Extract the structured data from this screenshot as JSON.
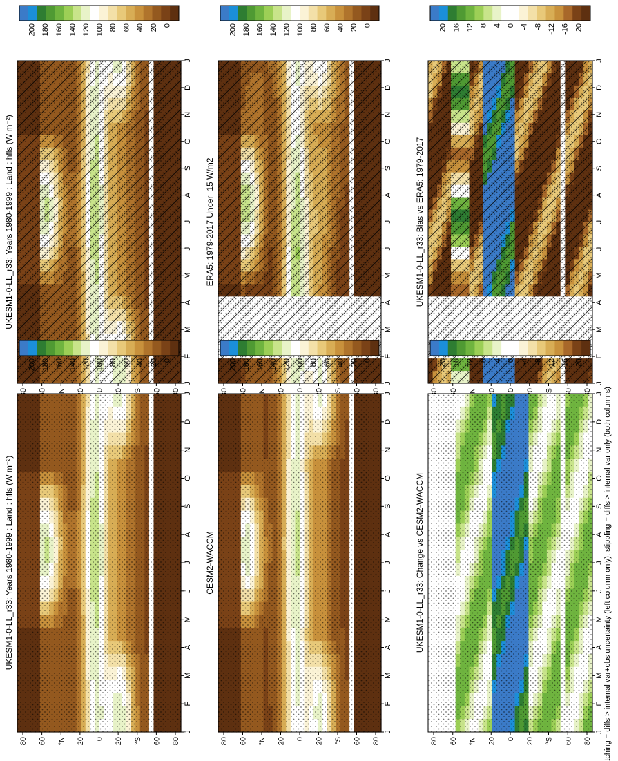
{
  "footnote": "hatching = diffs > internal var+obs uncertainty (left column only); stippling = diffs > internal var only (both columns)",
  "palettes": {
    "abs": [
      "#3b7bc8",
      "#1b8fd9",
      "#2e7d32",
      "#4f9a33",
      "#6fb43f",
      "#9ccf56",
      "#c8e48a",
      "#e8f3c8",
      "#ffffff",
      "#fbf3d6",
      "#f3e0a8",
      "#e8c979",
      "#d8ad55",
      "#c8913c",
      "#b0742c",
      "#94591f",
      "#7a4217",
      "#5e3010"
    ],
    "diff": [
      "#3b7bc8",
      "#1b8fd9",
      "#2e7d32",
      "#4f9a33",
      "#6fb43f",
      "#9ccf56",
      "#c8e48a",
      "#e8f3c8",
      "#ffffff",
      "#ffffff",
      "#fbf3d6",
      "#f3e0a8",
      "#e8c979",
      "#d8ad55",
      "#c8913c",
      "#a8682a",
      "#7a4217",
      "#5e3010"
    ]
  },
  "chart_data": [
    {
      "type": "heatmap",
      "title": "UKESM1-0-LL_r33: Years 1980-1999 : Land : hfls (W m⁻²)",
      "months": [
        "J",
        "F",
        "M",
        "A",
        "M",
        "J",
        "J",
        "A",
        "S",
        "O",
        "N",
        "D",
        "J"
      ],
      "lat_ticks": [
        "80",
        "60",
        "°N",
        "20",
        "0",
        "20",
        "°S",
        "60",
        "80"
      ],
      "colorbar_ticks": [
        "200",
        "180",
        "160",
        "140",
        "120",
        "100",
        "80",
        "60",
        "40",
        "20",
        "0"
      ],
      "palette": "abs",
      "field": "clim",
      "amp": 1.0,
      "hatch": true,
      "stipple": true
    },
    {
      "type": "heatmap",
      "title": "ERA5: 1979-2017 Uncer=15 W/m2",
      "months": [
        "J",
        "F",
        "M",
        "A",
        "M",
        "J",
        "J",
        "A",
        "S",
        "O",
        "N",
        "D",
        "J"
      ],
      "lat_ticks": [
        "80",
        "60",
        "°N",
        "20",
        "0",
        "20",
        "°S",
        "60",
        "80"
      ],
      "colorbar_ticks": [
        "200",
        "180",
        "160",
        "140",
        "120",
        "100",
        "80",
        "60",
        "40",
        "20",
        "0"
      ],
      "palette": "abs",
      "field": "obs",
      "amp": 1.0,
      "hatch": true,
      "stipple": true
    },
    {
      "type": "heatmap",
      "title": "UKESM1-0-LL_r33: Bias vs ERA5: 1979-2017",
      "months": [
        "J",
        "F",
        "M",
        "A",
        "M",
        "J",
        "J",
        "A",
        "S",
        "O",
        "N",
        "D",
        "J"
      ],
      "lat_ticks": [
        "80",
        "60",
        "°N",
        "20",
        "0",
        "20",
        "°S",
        "60",
        "80"
      ],
      "colorbar_ticks": [
        "20",
        "16",
        "12",
        "8",
        "4",
        "0",
        "-4",
        "-8",
        "-12",
        "-16",
        "-20"
      ],
      "palette": "diff",
      "field": "bias",
      "amp": 1.0,
      "hatch": true,
      "stipple": true
    },
    {
      "type": "heatmap",
      "title": "UKESM1-0-LL_r33: Years 1980-1999 : Land : hfls (W m⁻²)",
      "months": [
        "J",
        "F",
        "M",
        "A",
        "M",
        "J",
        "J",
        "A",
        "S",
        "O",
        "N",
        "D",
        "J"
      ],
      "lat_ticks": [
        "80",
        "60",
        "°N",
        "20",
        "0",
        "20",
        "°S",
        "60",
        "80"
      ],
      "colorbar_ticks": [
        "200",
        "180",
        "160",
        "140",
        "120",
        "100",
        "80",
        "60",
        "40",
        "20",
        "0"
      ],
      "palette": "abs",
      "field": "clim",
      "amp": 1.0,
      "hatch": false,
      "stipple": true
    },
    {
      "type": "heatmap",
      "title": "CESM2-WACCM",
      "months": [
        "J",
        "F",
        "M",
        "A",
        "M",
        "J",
        "J",
        "A",
        "S",
        "O",
        "N",
        "D",
        "J"
      ],
      "lat_ticks": [
        "80",
        "60",
        "°N",
        "20",
        "0",
        "20",
        "°S",
        "60",
        "80"
      ],
      "colorbar_ticks": [
        "200",
        "180",
        "160",
        "140",
        "120",
        "100",
        "80",
        "60",
        "40",
        "20",
        "0"
      ],
      "palette": "abs",
      "field": "clim",
      "amp": 0.95,
      "hatch": false,
      "stipple": true
    },
    {
      "type": "heatmap",
      "title": "UKESM1-0-LL_r33: Change vs CESM2-WACCM",
      "months": [
        "J",
        "F",
        "M",
        "A",
        "M",
        "J",
        "J",
        "A",
        "S",
        "O",
        "N",
        "D",
        "J"
      ],
      "lat_ticks": [
        "80",
        "60",
        "°N",
        "20",
        "0",
        "20",
        "°S",
        "60",
        "80"
      ],
      "colorbar_ticks": [
        "20",
        "16",
        "12",
        "8",
        "4",
        "0",
        "-4",
        "-8",
        "-12",
        "-16",
        "-20"
      ],
      "palette": "diff",
      "field": "change",
      "amp": 1.0,
      "hatch": false,
      "stipple": true
    }
  ]
}
